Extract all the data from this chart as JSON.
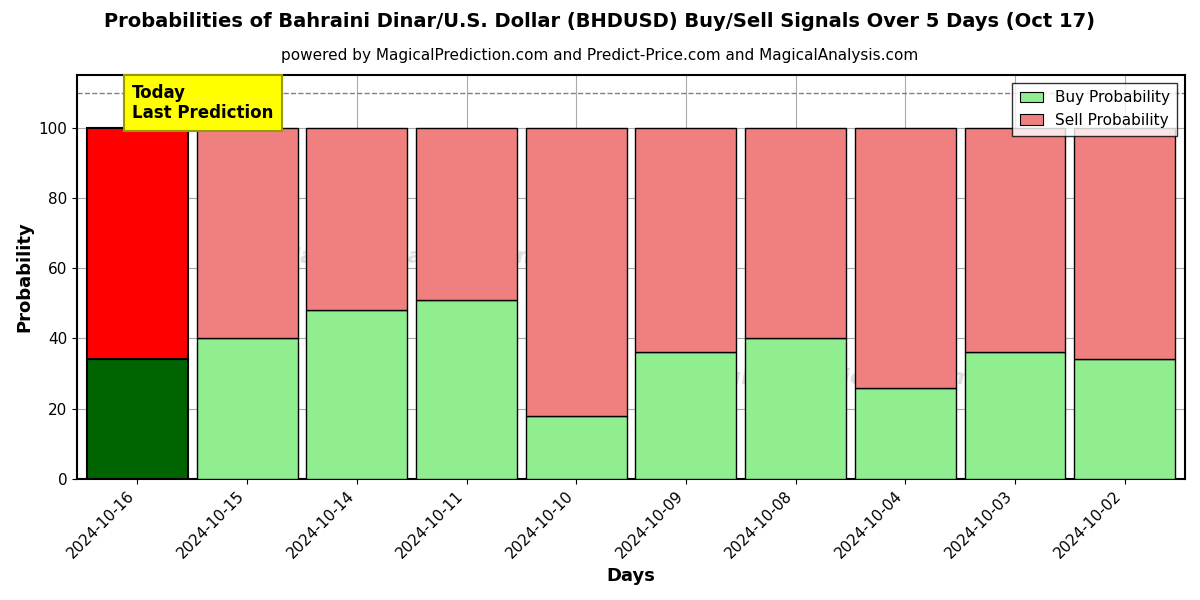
{
  "title": "Probabilities of Bahraini Dinar/U.S. Dollar (BHDUSD) Buy/Sell Signals Over 5 Days (Oct 17)",
  "subtitle": "powered by MagicalPrediction.com and Predict-Price.com and MagicalAnalysis.com",
  "xlabel": "Days",
  "ylabel": "Probability",
  "dates": [
    "2024-10-16",
    "2024-10-15",
    "2024-10-14",
    "2024-10-11",
    "2024-10-10",
    "2024-10-09",
    "2024-10-08",
    "2024-10-04",
    "2024-10-03",
    "2024-10-02"
  ],
  "buy_values": [
    34,
    40,
    48,
    51,
    18,
    36,
    40,
    26,
    36,
    34
  ],
  "sell_values": [
    66,
    60,
    52,
    49,
    82,
    64,
    60,
    74,
    64,
    66
  ],
  "today_buy_color": "#006400",
  "today_sell_color": "#FF0000",
  "buy_color": "#90EE90",
  "sell_color": "#F08080",
  "bar_edge_color": "#000000",
  "today_label_bg": "#FFFF00",
  "today_label_text": "Today\nLast Prediction",
  "ylim": [
    0,
    115
  ],
  "yticks": [
    0,
    20,
    40,
    60,
    80,
    100
  ],
  "grid_color": "#aaaaaa",
  "background_color": "#ffffff",
  "title_fontsize": 14,
  "subtitle_fontsize": 11,
  "axis_label_fontsize": 13,
  "tick_fontsize": 11,
  "legend_fontsize": 11,
  "bar_width": 0.92,
  "dashed_line_y": 110
}
